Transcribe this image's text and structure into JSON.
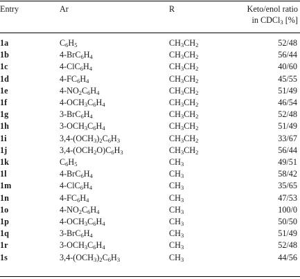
{
  "headers": {
    "entry": "Entry",
    "ar": "Ar",
    "r": "R",
    "ratio_line1": "Keto/enol ratio",
    "ratio_line2": "in CDCl3 [%]"
  },
  "rows": [
    {
      "entry": "1a",
      "ar": "C6H5",
      "r": "CH3CH2",
      "ratio": "52/48"
    },
    {
      "entry": "1b",
      "ar": "4-BrC6H4",
      "r": "CH3CH2",
      "ratio": "56/44"
    },
    {
      "entry": "1c",
      "ar": "4-ClC6H4",
      "r": "CH3CH2",
      "ratio": "40/60"
    },
    {
      "entry": "1d",
      "ar": "4-FC6H4",
      "r": "CH3CH2",
      "ratio": "45/55"
    },
    {
      "entry": "1e",
      "ar": "4-NO2C6H4",
      "r": "CH3CH2",
      "ratio": "51/49"
    },
    {
      "entry": "1f",
      "ar": "4-OCH3C6H4",
      "r": "CH3CH2",
      "ratio": "46/54"
    },
    {
      "entry": "1g",
      "ar": "3-BrC6H4",
      "r": "CH3CH2",
      "ratio": "52/48"
    },
    {
      "entry": "1h",
      "ar": "3-OCH3C6H4",
      "r": "CH3CH2",
      "ratio": "51/49"
    },
    {
      "entry": "1i",
      "ar": "3,4-(OCH3)2C6H3",
      "r": "CH3CH2",
      "ratio": "33/67"
    },
    {
      "entry": "1j",
      "ar": "3,4-(OCH2O)C6H3",
      "r": "CH3CH2",
      "ratio": "56/44"
    },
    {
      "entry": "1k",
      "ar": "C6H5",
      "r": "CH3",
      "ratio": "49/51"
    },
    {
      "entry": "1l",
      "ar": "4-BrC6H4",
      "r": "CH3",
      "ratio": "58/42"
    },
    {
      "entry": "1m",
      "ar": "4-ClC6H4",
      "r": "CH3",
      "ratio": "35/65"
    },
    {
      "entry": "1n",
      "ar": "4-FC6H4",
      "r": "CH3",
      "ratio": "47/53"
    },
    {
      "entry": "1o",
      "ar": "4-NO2C6H4",
      "r": "CH3",
      "ratio": "100/0"
    },
    {
      "entry": "1p",
      "ar": "4-OCH3C6H4",
      "r": "CH3",
      "ratio": "50/50"
    },
    {
      "entry": "1q",
      "ar": "3-BrC6H4",
      "r": "CH3",
      "ratio": "51/49"
    },
    {
      "entry": "1r",
      "ar": "3-OCH3C6H4",
      "r": "CH3",
      "ratio": "52/48"
    },
    {
      "entry": "1s",
      "ar": "3,4-(OCH3)2C6H3",
      "r": "CH3",
      "ratio": "44/56"
    }
  ]
}
